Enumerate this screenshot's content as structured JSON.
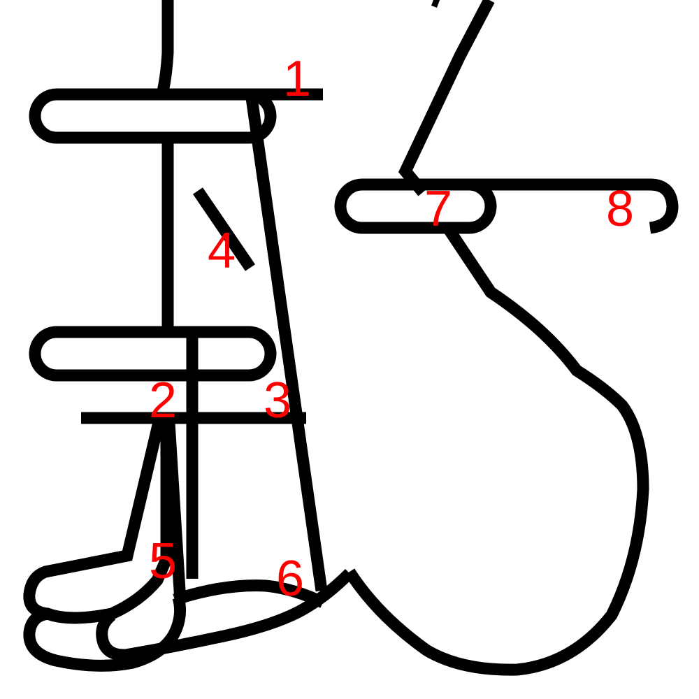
{
  "diagram": {
    "labels": [
      {
        "id": "1",
        "text": "1"
      },
      {
        "id": "2",
        "text": "2"
      },
      {
        "id": "3",
        "text": "3"
      },
      {
        "id": "4",
        "text": "4"
      },
      {
        "id": "5",
        "text": "5"
      },
      {
        "id": "6",
        "text": "6"
      },
      {
        "id": "7",
        "text": "7"
      },
      {
        "id": "8",
        "text": "8"
      }
    ]
  },
  "colors": {
    "line": "#000000",
    "label": "#ff0000",
    "background": "#ffffff"
  }
}
